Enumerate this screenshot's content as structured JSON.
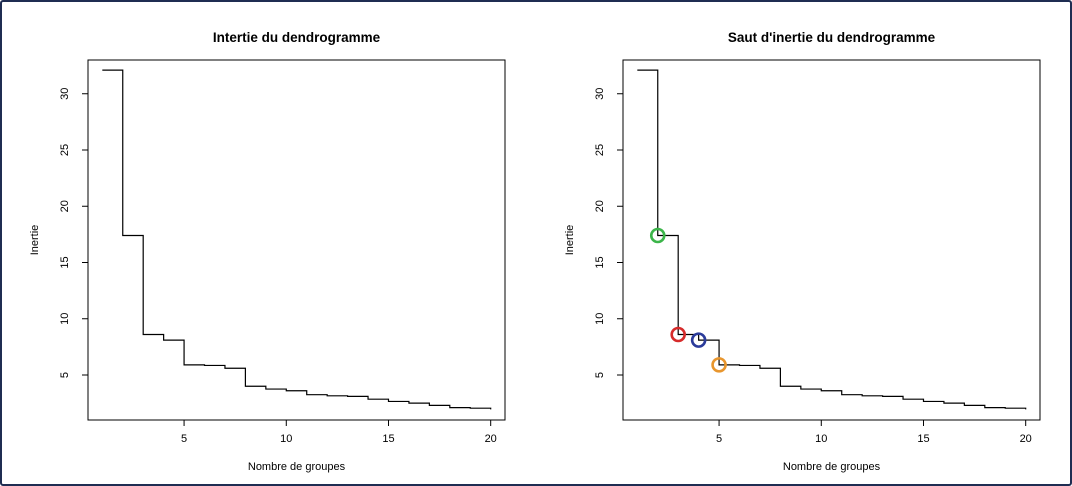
{
  "chart_data": [
    {
      "type": "line",
      "title": "Intertie du dendrogramme",
      "xlabel": "Nombre de groupes",
      "ylabel": "Inertie",
      "step": true,
      "xlim": [
        0.3,
        20.7
      ],
      "ylim": [
        1.0,
        33.0
      ],
      "xticks": [
        5,
        10,
        15,
        20
      ],
      "yticks": [
        5,
        10,
        15,
        20,
        25,
        30
      ],
      "x": [
        1,
        2,
        3,
        4,
        5,
        6,
        7,
        8,
        9,
        10,
        11,
        12,
        13,
        14,
        15,
        16,
        17,
        18,
        19,
        20
      ],
      "values": [
        32.1,
        17.4,
        8.6,
        8.1,
        5.9,
        5.85,
        5.6,
        4.0,
        3.75,
        3.6,
        3.25,
        3.15,
        3.1,
        2.85,
        2.65,
        2.5,
        2.3,
        2.1,
        2.05,
        1.95
      ],
      "grid": false
    },
    {
      "type": "line",
      "title": "Saut d'inertie du dendrogramme",
      "xlabel": "Nombre de groupes",
      "ylabel": "Inertie",
      "step": true,
      "xlim": [
        0.3,
        20.7
      ],
      "ylim": [
        1.0,
        33.0
      ],
      "xticks": [
        5,
        10,
        15,
        20
      ],
      "yticks": [
        5,
        10,
        15,
        20,
        25,
        30
      ],
      "x": [
        1,
        2,
        3,
        4,
        5,
        6,
        7,
        8,
        9,
        10,
        11,
        12,
        13,
        14,
        15,
        16,
        17,
        18,
        19,
        20
      ],
      "values": [
        32.1,
        17.4,
        8.6,
        8.1,
        5.9,
        5.85,
        5.6,
        4.0,
        3.75,
        3.6,
        3.25,
        3.15,
        3.1,
        2.85,
        2.65,
        2.5,
        2.3,
        2.1,
        2.05,
        1.95
      ],
      "highlights": [
        {
          "x": 2,
          "y": 17.4,
          "color": "#3cb54a"
        },
        {
          "x": 3,
          "y": 8.6,
          "color": "#d62b2b"
        },
        {
          "x": 4,
          "y": 8.1,
          "color": "#2b3b9a"
        },
        {
          "x": 5,
          "y": 5.9,
          "color": "#e8962e"
        }
      ],
      "grid": false
    }
  ]
}
